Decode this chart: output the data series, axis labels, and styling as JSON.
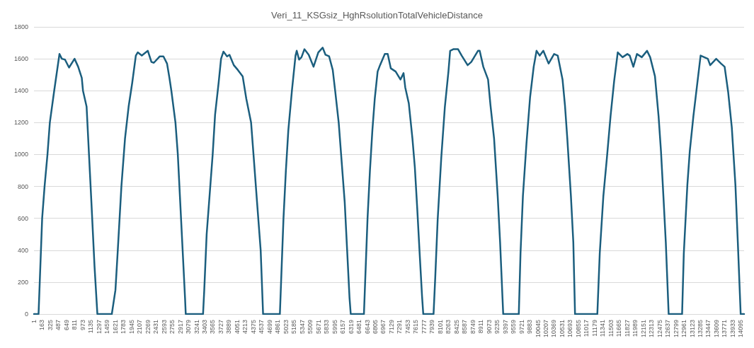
{
  "chart_data": {
    "type": "line",
    "title": "Veri_11_KSGsiz_HghRsolutionTotalVehicleDistance",
    "series": [
      {
        "color": "#1b5e7e",
        "x": [
          1,
          92,
          116,
          164,
          212,
          270,
          317,
          404,
          509,
          557,
          619,
          700,
          810,
          882,
          954,
          978,
          1050,
          1098,
          1146,
          1208,
          1265,
          1553,
          1625,
          1672,
          1744,
          1816,
          1888,
          1960,
          2032,
          2070,
          2151,
          2271,
          2343,
          2391,
          2510,
          2582,
          2654,
          2702,
          2740,
          2822,
          2869,
          2917,
          2965,
          3013,
          3027,
          3372,
          3396,
          3444,
          3516,
          3564,
          3612,
          3683,
          3731,
          3779,
          3851,
          3899,
          3985,
          4066,
          4162,
          4234,
          4330,
          4378,
          4449,
          4521,
          4569,
          4904,
          4928,
          4976,
          5024,
          5072,
          5144,
          5216,
          5240,
          5287,
          5335,
          5393,
          5479,
          5575,
          5670,
          5757,
          5814,
          5886,
          5958,
          6006,
          6077,
          6125,
          6197,
          6245,
          6293,
          6317,
          6580,
          6604,
          6652,
          6700,
          6748,
          6796,
          6853,
          6901,
          6997,
          7054,
          7116,
          7212,
          7308,
          7370,
          7404,
          7475,
          7547,
          7595,
          7643,
          7691,
          7739,
          7763,
          7968,
          8002,
          8050,
          8122,
          8194,
          8265,
          8299,
          8361,
          8457,
          8529,
          8648,
          8720,
          8854,
          8888,
          8960,
          9055,
          9103,
          9175,
          9247,
          9295,
          9343,
          9357,
          9668,
          9702,
          9750,
          9821,
          9893,
          9965,
          10022,
          10085,
          10157,
          10262,
          10372,
          10444,
          10540,
          10588,
          10635,
          10707,
          10755,
          10789,
          11234,
          11282,
          11354,
          11425,
          11497,
          11569,
          11641,
          11737,
          11833,
          11880,
          11952,
          12024,
          12120,
          12225,
          12287,
          12383,
          12455,
          12503,
          12551,
          12599,
          12656,
          12924,
          12958,
          13029,
          13077,
          13149,
          13221,
          13293,
          13365,
          13437,
          13484,
          13604,
          13700,
          13772,
          13843,
          13915,
          13987,
          14035,
          14092,
          14160
        ],
        "values": [
          0,
          0,
          200,
          600,
          800,
          1000,
          1200,
          1400,
          1630,
          1600,
          1595,
          1545,
          1600,
          1550,
          1480,
          1400,
          1300,
          1000,
          700,
          300,
          0,
          0,
          150,
          400,
          800,
          1100,
          1300,
          1450,
          1620,
          1640,
          1620,
          1650,
          1580,
          1575,
          1615,
          1615,
          1570,
          1480,
          1400,
          1200,
          1000,
          700,
          400,
          100,
          0,
          0,
          150,
          500,
          800,
          1000,
          1250,
          1450,
          1600,
          1645,
          1615,
          1625,
          1560,
          1530,
          1490,
          1350,
          1200,
          1000,
          700,
          400,
          0,
          0,
          200,
          600,
          900,
          1150,
          1400,
          1620,
          1650,
          1595,
          1610,
          1660,
          1625,
          1550,
          1640,
          1670,
          1625,
          1615,
          1530,
          1400,
          1200,
          1000,
          700,
          400,
          100,
          0,
          0,
          200,
          600,
          900,
          1150,
          1350,
          1520,
          1560,
          1630,
          1630,
          1540,
          1520,
          1470,
          1510,
          1420,
          1320,
          1100,
          920,
          660,
          380,
          110,
          0,
          0,
          230,
          590,
          980,
          1300,
          1520,
          1650,
          1660,
          1660,
          1620,
          1560,
          1580,
          1650,
          1650,
          1550,
          1470,
          1310,
          1100,
          740,
          450,
          100,
          0,
          0,
          380,
          740,
          1070,
          1360,
          1550,
          1650,
          1620,
          1650,
          1570,
          1630,
          1620,
          1470,
          1310,
          1100,
          740,
          450,
          0,
          0,
          380,
          740,
          980,
          1240,
          1460,
          1640,
          1610,
          1630,
          1620,
          1550,
          1630,
          1610,
          1650,
          1610,
          1490,
          1240,
          1020,
          740,
          450,
          0,
          0,
          380,
          810,
          1020,
          1240,
          1430,
          1620,
          1610,
          1600,
          1560,
          1600,
          1570,
          1550,
          1390,
          1170,
          810,
          450,
          0,
          0
        ]
      }
    ],
    "xlim": [
      1,
      14160
    ],
    "xticks": [
      1,
      163,
      325,
      487,
      649,
      811,
      973,
      1135,
      1297,
      1459,
      1621,
      1783,
      1945,
      2107,
      2269,
      2431,
      2593,
      2755,
      2917,
      3079,
      3241,
      3403,
      3565,
      3727,
      3889,
      4051,
      4213,
      4375,
      4537,
      4699,
      4861,
      5023,
      5185,
      5347,
      5509,
      5671,
      5833,
      5995,
      6157,
      6319,
      6481,
      6643,
      6805,
      6967,
      7129,
      7291,
      7453,
      7615,
      7777,
      7939,
      8101,
      8263,
      8425,
      8587,
      8749,
      8911,
      9073,
      9235,
      9397,
      9559,
      9721,
      9883,
      10045,
      10207,
      10369,
      10531,
      10693,
      10855,
      11017,
      11179,
      11341,
      11503,
      11665,
      11827,
      11989,
      12151,
      12313,
      12475,
      12637,
      12799,
      12961,
      13123,
      13285,
      13447,
      13609,
      13771,
      13933,
      14095
    ],
    "ylim": [
      0,
      1800
    ],
    "yticks": [
      0,
      200,
      400,
      600,
      800,
      1000,
      1200,
      1400,
      1600,
      1800
    ],
    "grid": "y",
    "marker": "none",
    "line_style": "solid"
  }
}
